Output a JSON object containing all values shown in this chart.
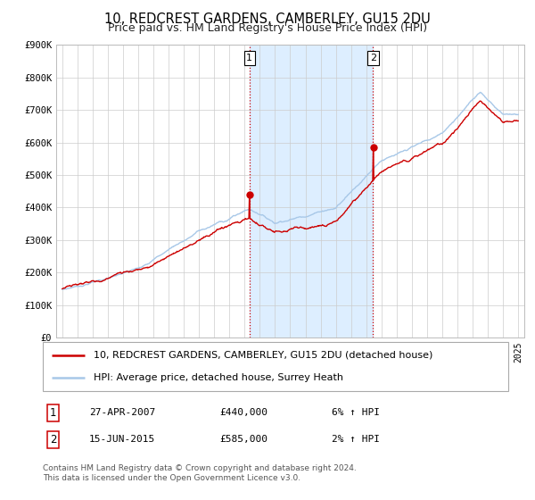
{
  "title": "10, REDCREST GARDENS, CAMBERLEY, GU15 2DU",
  "subtitle": "Price paid vs. HM Land Registry's House Price Index (HPI)",
  "ylim": [
    0,
    900000
  ],
  "yticks": [
    0,
    100000,
    200000,
    300000,
    400000,
    500000,
    600000,
    700000,
    800000,
    900000
  ],
  "ytick_labels": [
    "£0",
    "£100K",
    "£200K",
    "£300K",
    "£400K",
    "£500K",
    "£600K",
    "£700K",
    "£800K",
    "£900K"
  ],
  "hpi_color": "#a8c8e8",
  "price_color": "#cc0000",
  "shade_color": "#ddeeff",
  "grid_color": "#cccccc",
  "background_color": "#ffffff",
  "sale1_year": 2007.32,
  "sale1_price": 440000,
  "sale2_year": 2015.45,
  "sale2_price": 585000,
  "legend_label1": "10, REDCREST GARDENS, CAMBERLEY, GU15 2DU (detached house)",
  "legend_label2": "HPI: Average price, detached house, Surrey Heath",
  "note1_num": "1",
  "note1_date": "27-APR-2007",
  "note1_price": "£440,000",
  "note1_pct": "6% ↑ HPI",
  "note2_num": "2",
  "note2_date": "15-JUN-2015",
  "note2_price": "£585,000",
  "note2_pct": "2% ↑ HPI",
  "footer": "Contains HM Land Registry data © Crown copyright and database right 2024.\nThis data is licensed under the Open Government Licence v3.0.",
  "title_fontsize": 10.5,
  "subtitle_fontsize": 9,
  "tick_fontsize": 7.5,
  "legend_fontsize": 8,
  "note_fontsize": 8,
  "footer_fontsize": 6.5
}
